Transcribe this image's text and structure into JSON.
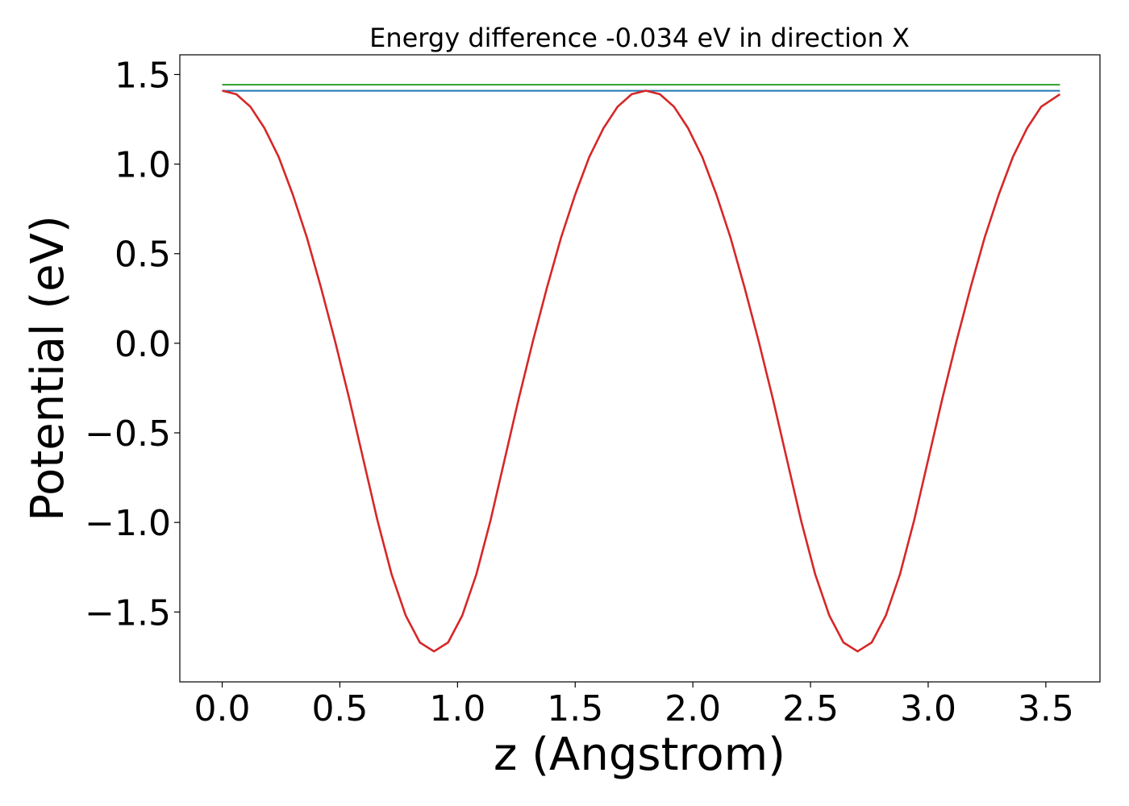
{
  "chart_data": {
    "type": "line",
    "title": "Energy difference -0.034 eV in direction X",
    "xlabel": "z (Angstrom)",
    "ylabel": "Potential (eV)",
    "xlim": [
      -0.18,
      3.73
    ],
    "ylim": [
      -1.89,
      1.61
    ],
    "xticks": [
      0.0,
      0.5,
      1.0,
      1.5,
      2.0,
      2.5,
      3.0,
      3.5
    ],
    "xtick_labels": [
      "0.0",
      "0.5",
      "1.0",
      "1.5",
      "2.0",
      "2.5",
      "3.0",
      "3.5"
    ],
    "yticks": [
      1.5,
      1.0,
      0.5,
      0.0,
      -0.5,
      -1.0,
      -1.5
    ],
    "ytick_labels": [
      "1.5",
      "1.0",
      "0.5",
      "0.0",
      "−0.5",
      "−1.0",
      "−1.5"
    ],
    "grid": false,
    "series": [
      {
        "color": "#2ca02c",
        "x": [
          0.0,
          3.56
        ],
        "y": [
          1.443,
          1.443
        ]
      },
      {
        "color": "#1f77b4",
        "x": [
          0.0,
          3.56
        ],
        "y": [
          1.409,
          1.409
        ]
      },
      {
        "color": "#d62728",
        "x": [
          0.0,
          0.06,
          0.12,
          0.18,
          0.24,
          0.3,
          0.36,
          0.42,
          0.48,
          0.54,
          0.6,
          0.66,
          0.72,
          0.78,
          0.84,
          0.9,
          0.96,
          1.02,
          1.08,
          1.14,
          1.2,
          1.26,
          1.32,
          1.38,
          1.44,
          1.5,
          1.56,
          1.62,
          1.68,
          1.74,
          1.8,
          1.86,
          1.92,
          1.98,
          2.04,
          2.1,
          2.16,
          2.22,
          2.28,
          2.34,
          2.4,
          2.46,
          2.52,
          2.58,
          2.64,
          2.7,
          2.76,
          2.82,
          2.88,
          2.94,
          3.0,
          3.06,
          3.12,
          3.18,
          3.24,
          3.3,
          3.36,
          3.42,
          3.48,
          3.56
        ],
        "y": [
          1.41,
          1.39,
          1.32,
          1.2,
          1.04,
          0.83,
          0.59,
          0.31,
          0.01,
          -0.31,
          -0.65,
          -0.99,
          -1.29,
          -1.52,
          -1.67,
          -1.72,
          -1.67,
          -1.52,
          -1.29,
          -0.99,
          -0.65,
          -0.31,
          0.01,
          0.31,
          0.59,
          0.83,
          1.04,
          1.2,
          1.32,
          1.39,
          1.41,
          1.39,
          1.32,
          1.2,
          1.04,
          0.83,
          0.59,
          0.31,
          0.01,
          -0.31,
          -0.65,
          -0.99,
          -1.29,
          -1.52,
          -1.67,
          -1.72,
          -1.67,
          -1.52,
          -1.29,
          -0.99,
          -0.65,
          -0.31,
          0.01,
          0.31,
          0.59,
          0.83,
          1.04,
          1.2,
          1.32,
          1.39
        ]
      }
    ]
  }
}
